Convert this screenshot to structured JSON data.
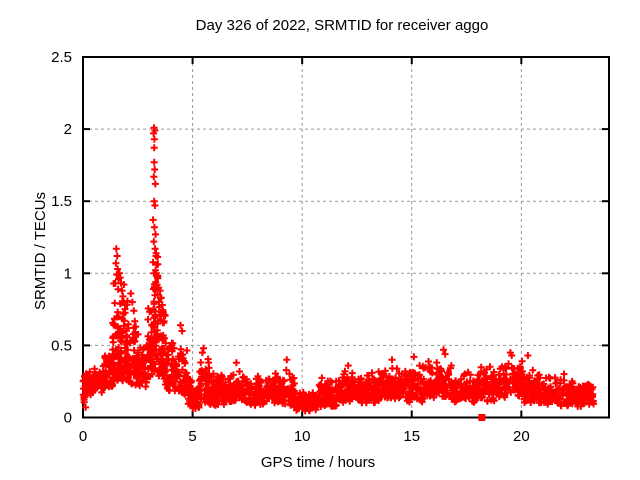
{
  "window": {
    "background": "#ffffff"
  },
  "chart_data": {
    "type": "scatter",
    "title": "Day 326 of 2022, SRMTID for receiver aggo",
    "xlabel": "GPS time / hours",
    "ylabel": "SRMTID / TECUs",
    "xlim": [
      0,
      24
    ],
    "ylim": [
      0,
      2.5
    ],
    "xticks": [
      0,
      5,
      10,
      15,
      20
    ],
    "xtick_labels": [
      "0",
      "5",
      "10",
      "15",
      "20"
    ],
    "yticks": [
      0,
      0.5,
      1,
      1.5,
      2,
      2.5
    ],
    "ytick_labels": [
      "0",
      "0.5",
      "1",
      "1.5",
      "2",
      "2.5"
    ],
    "grid": {
      "show": true,
      "style": "dashed",
      "color": "#999999",
      "x_values": [
        5,
        10,
        15,
        20
      ],
      "y_values": [
        0.5,
        1,
        1.5,
        2
      ]
    },
    "legend": "none",
    "marker": {
      "shape": "plus",
      "color": "#ff0000",
      "size": 7,
      "stroke": 2
    },
    "axis_color": "#000000",
    "background_color": "#ffffff",
    "description": "Dense scatter of SRMTID values vs GPS time; quiet background band ~0.1-0.35 TECU all day, activity rising after t=1 with a spike to 1.17 at t~1.5 and a large spike to 2.01 at t~3.25, decaying to a low dip (~0.05-0.2) near t=10, mild undulating band to end of data at t~23.3.",
    "density_bands": [
      [
        0.0,
        0.12,
        14,
        0.05,
        0.3,
        1.0
      ],
      [
        0.1,
        0.45,
        40,
        0.15,
        0.33,
        1.3
      ],
      [
        0.45,
        0.95,
        55,
        0.17,
        0.38,
        1.4
      ],
      [
        0.95,
        1.35,
        50,
        0.2,
        0.5,
        1.4
      ],
      [
        1.35,
        1.7,
        60,
        0.25,
        1.0,
        1.8
      ],
      [
        1.7,
        2.05,
        65,
        0.25,
        0.95,
        1.8
      ],
      [
        2.05,
        2.45,
        55,
        0.22,
        0.75,
        1.7
      ],
      [
        2.45,
        2.95,
        55,
        0.2,
        0.6,
        1.6
      ],
      [
        2.95,
        3.18,
        40,
        0.25,
        0.8,
        1.5
      ],
      [
        3.18,
        3.42,
        55,
        0.3,
        1.3,
        1.4
      ],
      [
        3.42,
        3.75,
        50,
        0.25,
        0.95,
        1.6
      ],
      [
        3.75,
        4.3,
        60,
        0.18,
        0.6,
        1.6
      ],
      [
        4.3,
        4.75,
        50,
        0.15,
        0.55,
        1.6
      ],
      [
        4.75,
        5.3,
        55,
        0.05,
        0.28,
        1.4
      ],
      [
        5.3,
        5.75,
        50,
        0.1,
        0.45,
        1.6
      ],
      [
        5.75,
        6.6,
        75,
        0.08,
        0.32,
        1.5
      ],
      [
        6.6,
        7.4,
        75,
        0.1,
        0.36,
        1.6
      ],
      [
        7.4,
        8.3,
        80,
        0.08,
        0.3,
        1.5
      ],
      [
        8.3,
        9.1,
        75,
        0.1,
        0.33,
        1.5
      ],
      [
        9.1,
        9.65,
        50,
        0.08,
        0.36,
        1.6
      ],
      [
        9.65,
        10.7,
        90,
        0.04,
        0.2,
        1.3
      ],
      [
        10.7,
        11.6,
        80,
        0.07,
        0.3,
        1.5
      ],
      [
        11.6,
        12.6,
        90,
        0.1,
        0.33,
        1.5
      ],
      [
        12.6,
        13.6,
        90,
        0.1,
        0.34,
        1.5
      ],
      [
        13.6,
        14.6,
        90,
        0.12,
        0.37,
        1.5
      ],
      [
        14.6,
        15.6,
        90,
        0.1,
        0.38,
        1.5
      ],
      [
        15.6,
        16.85,
        110,
        0.12,
        0.42,
        1.5
      ],
      [
        16.85,
        18.05,
        100,
        0.1,
        0.35,
        1.5
      ],
      [
        18.05,
        19.05,
        90,
        0.1,
        0.37,
        1.5
      ],
      [
        19.05,
        20.1,
        95,
        0.12,
        0.43,
        1.5
      ],
      [
        20.1,
        21.1,
        90,
        0.1,
        0.35,
        1.5
      ],
      [
        21.1,
        22.35,
        100,
        0.08,
        0.33,
        1.5
      ],
      [
        22.35,
        22.75,
        30,
        0.07,
        0.24,
        1.4
      ],
      [
        22.75,
        23.3,
        55,
        0.08,
        0.28,
        1.4
      ]
    ],
    "peak_points": [
      [
        1.52,
        1.17
      ],
      [
        1.56,
        1.12
      ],
      [
        1.5,
        1.07
      ],
      [
        1.58,
        1.03
      ],
      [
        1.54,
        0.99
      ],
      [
        1.62,
        0.96
      ],
      [
        1.48,
        0.93
      ],
      [
        1.66,
        1.0
      ],
      [
        1.7,
        0.97
      ],
      [
        1.74,
        0.93
      ],
      [
        1.6,
        0.89
      ],
      [
        1.78,
        0.88
      ],
      [
        1.82,
        0.84
      ],
      [
        1.86,
        0.8
      ],
      [
        2.18,
        0.86
      ],
      [
        2.25,
        0.8
      ],
      [
        2.32,
        0.74
      ],
      [
        3.24,
        2.01
      ],
      [
        3.28,
        1.99
      ],
      [
        3.22,
        1.97
      ],
      [
        3.26,
        1.93
      ],
      [
        3.25,
        1.87
      ],
      [
        3.25,
        1.77
      ],
      [
        3.27,
        1.72
      ],
      [
        3.23,
        1.67
      ],
      [
        3.3,
        1.62
      ],
      [
        3.25,
        1.5
      ],
      [
        3.28,
        1.47
      ],
      [
        3.2,
        1.37
      ],
      [
        3.26,
        1.32
      ],
      [
        3.31,
        1.27
      ],
      [
        3.23,
        1.22
      ],
      [
        3.29,
        1.17
      ],
      [
        3.33,
        1.12
      ],
      [
        3.36,
        1.06
      ],
      [
        3.35,
        1.0
      ],
      [
        3.4,
        0.97
      ],
      [
        3.38,
        0.92
      ],
      [
        3.45,
        0.9
      ],
      [
        3.52,
        0.88
      ],
      [
        3.57,
        0.83
      ],
      [
        3.62,
        0.78
      ],
      [
        3.66,
        0.72
      ],
      [
        4.45,
        0.64
      ],
      [
        4.52,
        0.6
      ],
      [
        5.5,
        0.48
      ],
      [
        5.45,
        0.45
      ],
      [
        7.0,
        0.38
      ],
      [
        9.3,
        0.4
      ],
      [
        12.1,
        0.36
      ],
      [
        14.1,
        0.4
      ],
      [
        15.1,
        0.42
      ],
      [
        16.45,
        0.47
      ],
      [
        16.52,
        0.44
      ],
      [
        19.5,
        0.45
      ],
      [
        19.56,
        0.43
      ],
      [
        20.3,
        0.43
      ]
    ],
    "special_points": [
      {
        "x": 18.2,
        "y": 0.0,
        "marker": "filled-square",
        "color": "#ff0000"
      }
    ]
  }
}
